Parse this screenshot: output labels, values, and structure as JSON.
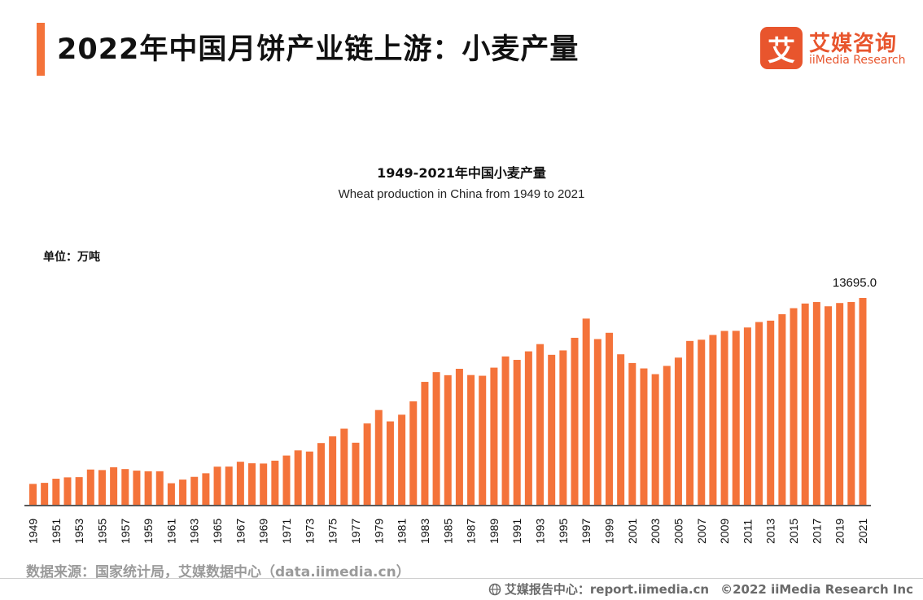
{
  "page": {
    "title": "2022年中国月饼产业链上游：小麦产量",
    "source": "数据来源：国家统计局，艾媒数据中心（data.iimedia.cn）",
    "footer_report": "艾媒报告中心：report.iimedia.cn",
    "footer_copyright": "©2022  iiMedia Research  Inc"
  },
  "logo": {
    "mark": "艾",
    "name_cn": "艾媒咨询",
    "name_en": "iiMedia Research"
  },
  "colors": {
    "accent": "#f4733a",
    "bar": "#f4733a",
    "logo": "#e8552d"
  },
  "chart_data": {
    "type": "bar",
    "title": "1949-2021年中国小麦产量",
    "subtitle": "Wheat production in China from 1949 to 2021",
    "unit_label": "单位：万吨",
    "ylabel": "万吨",
    "ylim": [
      0,
      15000
    ],
    "grid": false,
    "tick_years": [
      "1949",
      "1951",
      "1953",
      "1955",
      "1957",
      "1959",
      "1961",
      "1963",
      "1965",
      "1967",
      "1969",
      "1971",
      "1973",
      "1975",
      "1977",
      "1979",
      "1981",
      "1983",
      "1985",
      "1987",
      "1989",
      "1991",
      "1993",
      "1995",
      "1997",
      "1999",
      "2001",
      "2003",
      "2005",
      "2007",
      "2009",
      "2011",
      "2013",
      "2015",
      "2017",
      "2019",
      "2021"
    ],
    "data_label": "13695.0",
    "categories": [
      "1949",
      "1950",
      "1951",
      "1952",
      "1953",
      "1954",
      "1955",
      "1956",
      "1957",
      "1958",
      "1959",
      "1960",
      "1961",
      "1962",
      "1963",
      "1964",
      "1965",
      "1966",
      "1967",
      "1968",
      "1969",
      "1970",
      "1971",
      "1972",
      "1973",
      "1974",
      "1975",
      "1976",
      "1977",
      "1978",
      "1979",
      "1980",
      "1981",
      "1982",
      "1983",
      "1984",
      "1985",
      "1986",
      "1987",
      "1988",
      "1989",
      "1990",
      "1991",
      "1992",
      "1993",
      "1994",
      "1995",
      "1996",
      "1997",
      "1998",
      "1999",
      "2000",
      "2001",
      "2002",
      "2003",
      "2004",
      "2005",
      "2006",
      "2007",
      "2008",
      "2009",
      "2010",
      "2011",
      "2012",
      "2013",
      "2014",
      "2015",
      "2016",
      "2017",
      "2018",
      "2019",
      "2020",
      "2021"
    ],
    "values": [
      1381,
      1450,
      1723,
      1813,
      1828,
      2333,
      2297,
      2480,
      2364,
      2259,
      2218,
      2217,
      1425,
      1667,
      1848,
      2084,
      2522,
      2528,
      2849,
      2746,
      2729,
      2919,
      3258,
      3599,
      3523,
      4087,
      4531,
      5039,
      4108,
      5384,
      6273,
      5521,
      5964,
      6847,
      8139,
      8782,
      8581,
      9004,
      8590,
      8543,
      9081,
      9823,
      9595,
      10159,
      10639,
      9930,
      10221,
      11057,
      12329,
      10973,
      11388,
      9964,
      9387,
      9029,
      8649,
      9195,
      9745,
      10847,
      10930,
      11246,
      11512,
      11518,
      11740,
      12102,
      12193,
      12621,
      13019,
      13327,
      13424,
      13144,
      13360,
      13425,
      13695
    ]
  }
}
